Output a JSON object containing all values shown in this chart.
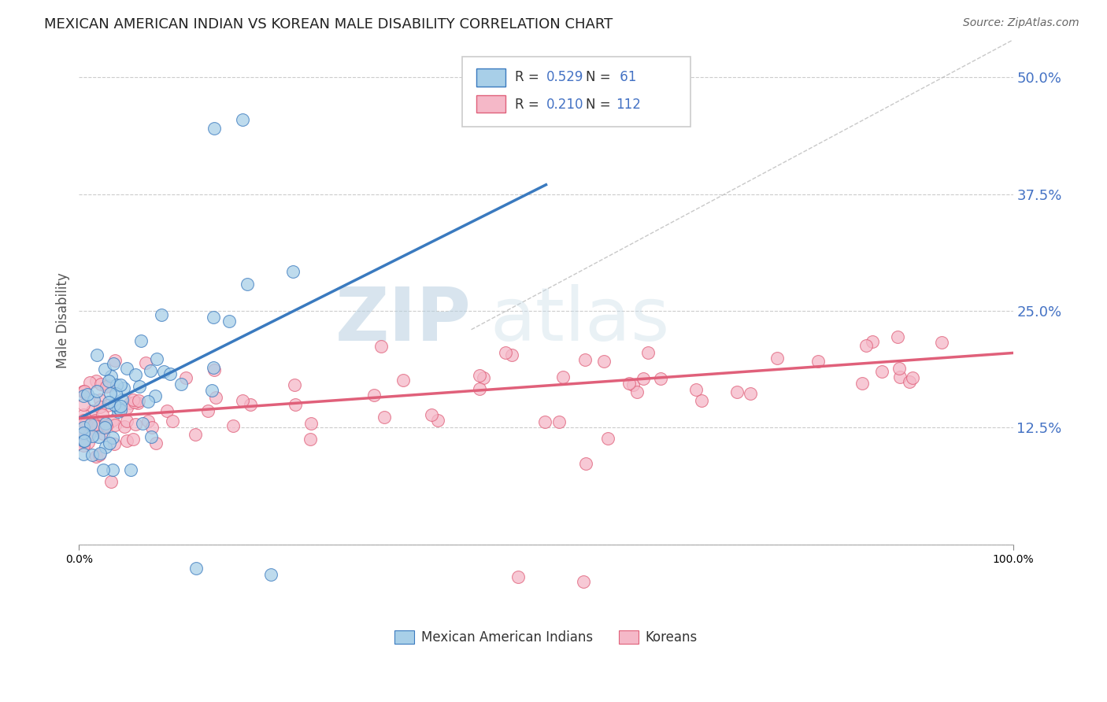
{
  "title": "MEXICAN AMERICAN INDIAN VS KOREAN MALE DISABILITY CORRELATION CHART",
  "source": "Source: ZipAtlas.com",
  "ylabel": "Male Disability",
  "yticks": [
    0.0,
    0.125,
    0.25,
    0.375,
    0.5
  ],
  "ytick_labels": [
    "",
    "12.5%",
    "25.0%",
    "37.5%",
    "50.0%"
  ],
  "xlim": [
    0.0,
    1.0
  ],
  "ylim": [
    -0.06,
    0.54
  ],
  "color_blue": "#a8cfe8",
  "color_pink": "#f5b8c8",
  "color_blue_line": "#3a7abf",
  "color_pink_line": "#e0607a",
  "color_ref_line": "#bbbbbb",
  "color_title": "#222222",
  "color_source": "#666666",
  "color_ytick": "#4472c4",
  "color_legend_text_label": "#333333",
  "color_legend_text_value": "#4472c4",
  "background_color": "#ffffff",
  "watermark_zip": "ZIP",
  "watermark_atlas": "atlas",
  "blue_line_x": [
    0.0,
    0.5
  ],
  "blue_line_y": [
    0.135,
    0.385
  ],
  "pink_line_x": [
    0.0,
    1.0
  ],
  "pink_line_y": [
    0.135,
    0.205
  ],
  "ref_line_x": [
    0.42,
    1.0
  ],
  "ref_line_y": [
    0.23,
    0.54
  ],
  "legend_line1": "R = 0.529   N =  61",
  "legend_line2": "R = 0.210   N = 112",
  "bottom_label1": "Mexican American Indians",
  "bottom_label2": "Koreans"
}
